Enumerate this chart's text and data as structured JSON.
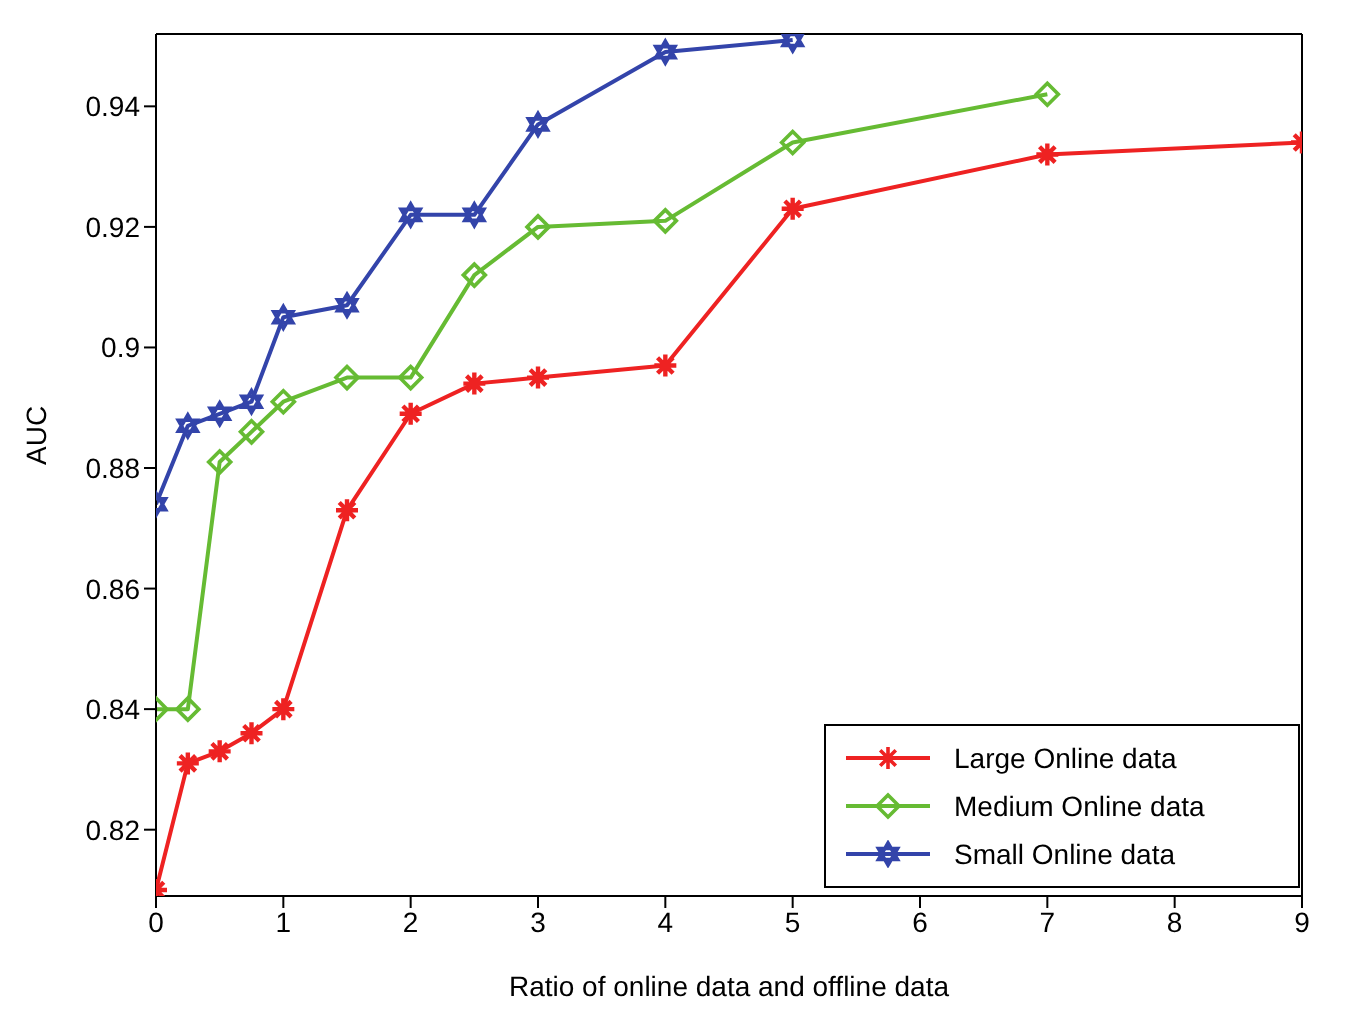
{
  "chart_data": {
    "type": "line",
    "xlabel": "Ratio of online data and offline data",
    "ylabel": "AUC",
    "xlim": [
      0,
      9
    ],
    "xticks": [
      0,
      1,
      2,
      3,
      4,
      5,
      6,
      7,
      8,
      9
    ],
    "ylim": [
      0.809,
      0.952
    ],
    "yticks": [
      0.82,
      0.84,
      0.86,
      0.88,
      0.9,
      0.92,
      0.94
    ],
    "legend": "bottom right",
    "line_style": "solid",
    "series": [
      {
        "name": "Large Online data",
        "color": "#ee2222",
        "marker": "cross",
        "x": [
          0,
          0.25,
          0.5,
          0.75,
          1,
          1.5,
          2,
          2.5,
          3,
          4,
          5,
          7,
          9
        ],
        "values": [
          0.81,
          0.831,
          0.833,
          0.836,
          0.84,
          0.873,
          0.889,
          0.894,
          0.895,
          0.897,
          0.923,
          0.932,
          0.934
        ]
      },
      {
        "name": "Medium Online data",
        "color": "#66bb33",
        "marker": "diamond",
        "x": [
          0,
          0.25,
          0.5,
          0.75,
          1,
          1.5,
          2,
          2.5,
          3,
          4,
          5,
          7
        ],
        "values": [
          0.84,
          0.84,
          0.881,
          0.886,
          0.891,
          0.895,
          0.895,
          0.912,
          0.92,
          0.921,
          0.934,
          0.942
        ]
      },
      {
        "name": "Small Online data",
        "color": "#3344aa",
        "marker": "star",
        "x": [
          0,
          0.25,
          0.5,
          0.75,
          1,
          1.5,
          2,
          2.5,
          3,
          4,
          5
        ],
        "values": [
          0.874,
          0.887,
          0.889,
          0.891,
          0.905,
          0.907,
          0.922,
          0.922,
          0.937,
          0.949,
          0.951
        ]
      }
    ]
  }
}
